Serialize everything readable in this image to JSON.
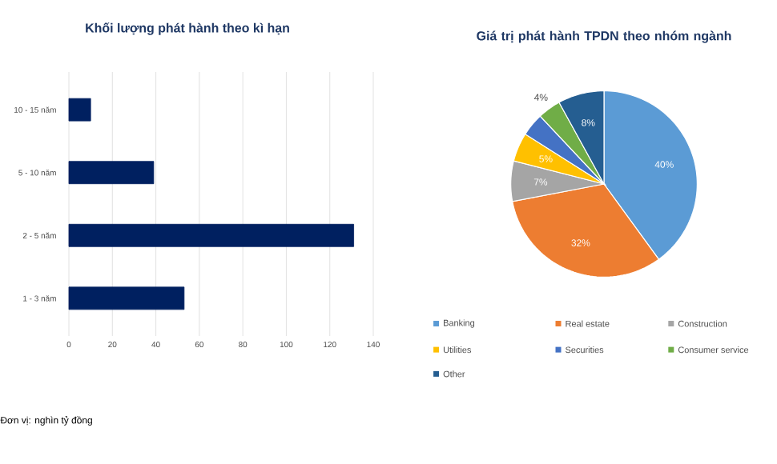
{
  "chart_data": [
    {
      "type": "bar",
      "orientation": "horizontal",
      "title": "Khối lượng phát hành theo kì hạn",
      "categories": [
        "10 - 15 năm",
        "5 - 10 năm",
        "2 - 5 năm",
        "1 - 3 năm"
      ],
      "values": [
        10,
        39,
        131,
        53
      ],
      "color": "#002060",
      "xlim": [
        0,
        140
      ],
      "xticks": [
        0,
        20,
        40,
        60,
        80,
        100,
        120,
        140
      ],
      "grid": "x",
      "annotations": [
        "Đơn vị: nghìn tỷ đồng"
      ]
    },
    {
      "type": "pie",
      "title": "Giá trị phát hành TPDN theo nhóm ngành",
      "categories": [
        "Banking",
        "Real estate",
        "Construction",
        "Utilities",
        "Securities",
        "Consumer service",
        "Other"
      ],
      "values": [
        40,
        32,
        7,
        5,
        4,
        4,
        8
      ],
      "colors": [
        "#5b9bd5",
        "#ed7d31",
        "#a5a5a5",
        "#ffc000",
        "#4472c4",
        "#70ad47",
        "#255e91"
      ],
      "value_labels": [
        "40%",
        "32%",
        "7%",
        "5%",
        null,
        "4%",
        "8%"
      ],
      "legend": "bottom"
    }
  ]
}
